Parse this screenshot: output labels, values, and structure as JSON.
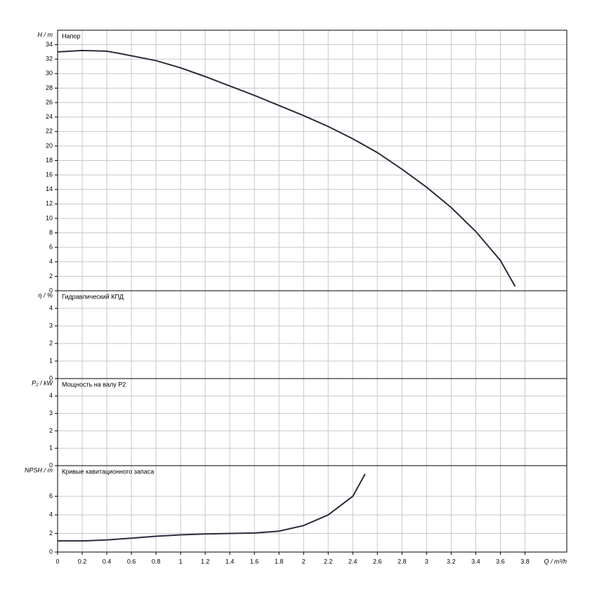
{
  "chart_data": [
    {
      "type": "line",
      "title": "Напор",
      "ylabel": "H / m",
      "xlim": [
        0,
        4.14
      ],
      "ylim": [
        0,
        36
      ],
      "yticks": [
        0,
        2,
        4,
        6,
        8,
        10,
        12,
        14,
        16,
        18,
        20,
        22,
        24,
        26,
        28,
        30,
        32,
        34
      ],
      "grid": true,
      "x": [
        0,
        0.2,
        0.4,
        0.5,
        0.8,
        1.0,
        1.2,
        1.4,
        1.6,
        1.8,
        2.0,
        2.2,
        2.4,
        2.6,
        2.8,
        3.0,
        3.2,
        3.4,
        3.6,
        3.72
      ],
      "series": [
        {
          "color": "#2b2d3c",
          "values": [
            33,
            33.2,
            33.1,
            32.8,
            31.8,
            30.8,
            29.6,
            28.3,
            27,
            25.6,
            24.2,
            22.7,
            21,
            19.1,
            16.8,
            14.3,
            11.5,
            8.2,
            4.2,
            0.6
          ]
        }
      ]
    },
    {
      "type": "line",
      "title": "Гидравлический КПД",
      "ylabel": "η / %",
      "xlim": [
        0,
        4.14
      ],
      "ylim": [
        0,
        5
      ],
      "yticks": [
        0,
        1,
        2,
        3,
        4
      ],
      "grid": true,
      "x": [],
      "series": []
    },
    {
      "type": "line",
      "title": "Мощность на валу P2",
      "ylabel": "P₂ / kW",
      "xlim": [
        0,
        4.14
      ],
      "ylim": [
        0,
        5
      ],
      "yticks": [
        0,
        1,
        2,
        3,
        4
      ],
      "grid": true,
      "x": [],
      "series": []
    },
    {
      "type": "line",
      "title": "Кривые кавитационного запаса",
      "ylabel": "NPSH / m",
      "xlabel": "Q / m³/h",
      "xlim": [
        0,
        4.14
      ],
      "ylim": [
        0,
        9.3
      ],
      "yticks": [
        0,
        2,
        4,
        6
      ],
      "grid": true,
      "xticks": [
        0,
        0.2,
        0.4,
        0.6,
        0.8,
        1,
        1.2,
        1.4,
        1.6,
        1.8,
        2,
        2.2,
        2.4,
        2.6,
        2.8,
        3,
        3.2,
        3.4,
        3.6,
        3.8
      ],
      "x": [
        0,
        0.2,
        0.4,
        0.6,
        0.8,
        1.0,
        1.2,
        1.4,
        1.6,
        1.8,
        2.0,
        2.2,
        2.4,
        2.5
      ],
      "series": [
        {
          "color": "#2b2d3c",
          "values": [
            1.2,
            1.2,
            1.3,
            1.5,
            1.7,
            1.85,
            1.95,
            2.0,
            2.05,
            2.25,
            2.85,
            4.0,
            6.0,
            8.4
          ]
        }
      ]
    }
  ]
}
